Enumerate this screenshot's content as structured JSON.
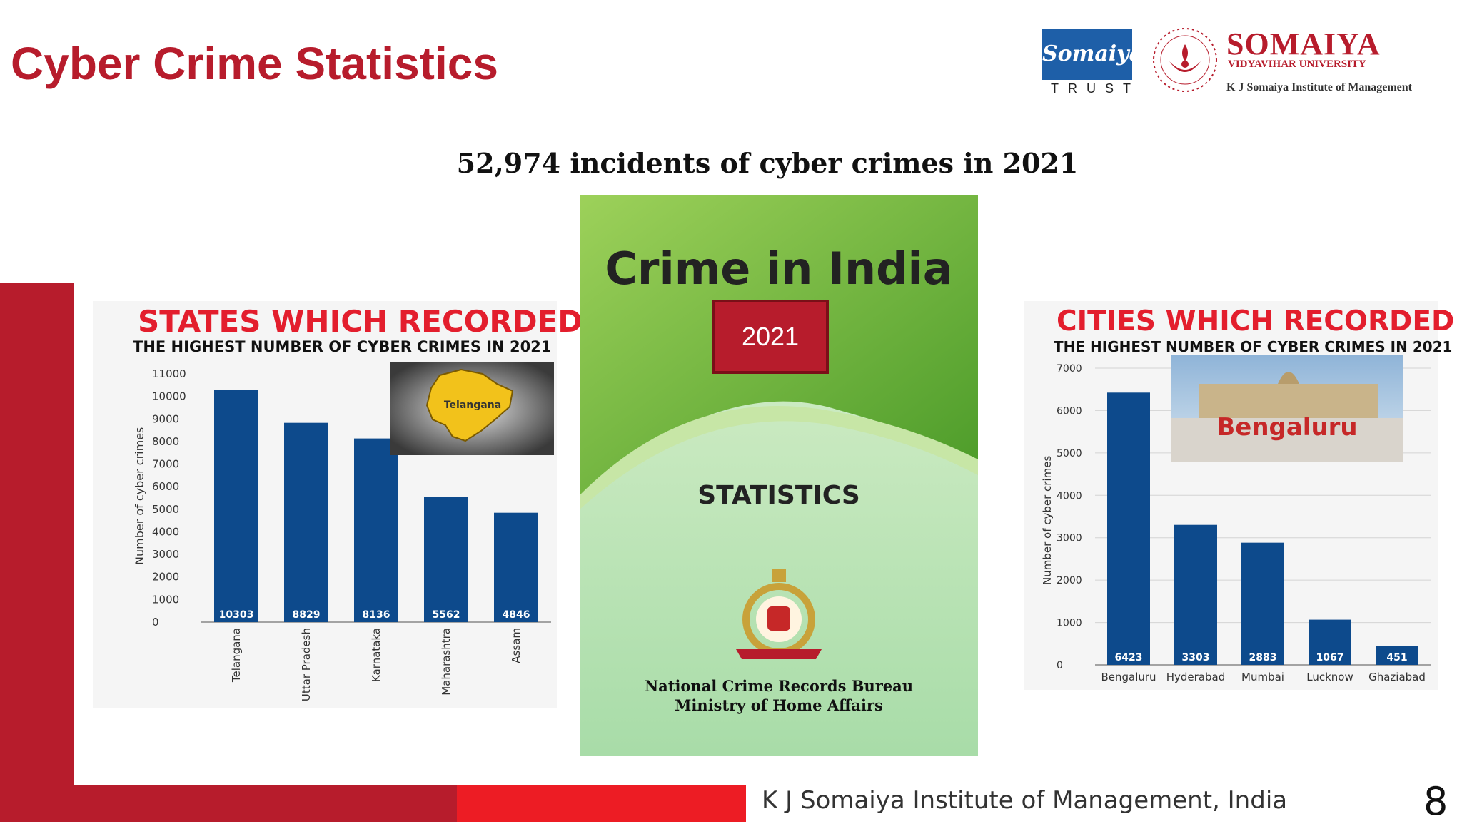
{
  "slide": {
    "title": "Cyber Crime Statistics",
    "subtitle": "52,974 incidents of cyber crimes in 2021",
    "footer": "K J Somaiya Institute of Management, India",
    "page_number": "8",
    "accent_color": "#b71c2c"
  },
  "logos": {
    "trust_script": "Somaiya",
    "trust_text": "TRUST",
    "university_name": "SOMAIYA",
    "university_sub": "VIDYAVIHAR UNIVERSITY",
    "institute": "K J Somaiya Institute of Management"
  },
  "book": {
    "title": "Crime in India",
    "year": "2021",
    "statistics": "STATISTICS",
    "bureau": "National Crime Records Bureau",
    "ministry": "Ministry of Home Affairs"
  },
  "states_photo_label": "Telangana",
  "cities_photo_label": "Bengaluru",
  "chart_data": [
    {
      "type": "bar",
      "title": "STATES WHICH RECORDED",
      "subtitle": "THE HIGHEST NUMBER OF CYBER CRIMES IN 2021",
      "ylabel": "Number of cyber crimes",
      "xlabel": "",
      "categories": [
        "Telangana",
        "Uttar Pradesh",
        "Karnataka",
        "Maharashtra",
        "Assam"
      ],
      "values": [
        10303,
        8829,
        8136,
        5562,
        4846
      ],
      "ylim": [
        0,
        11000
      ],
      "yticks": [
        0,
        1000,
        2000,
        3000,
        4000,
        5000,
        6000,
        7000,
        8000,
        9000,
        10000,
        11000
      ],
      "bar_color": "#0d4a8c",
      "grid": false
    },
    {
      "type": "bar",
      "title": "CITIES WHICH RECORDED",
      "subtitle": "THE HIGHEST NUMBER OF CYBER CRIMES IN 2021",
      "ylabel": "Number of cyber crimes",
      "xlabel": "",
      "categories": [
        "Bengaluru",
        "Hyderabad",
        "Mumbai",
        "Lucknow",
        "Ghaziabad"
      ],
      "values": [
        6423,
        3303,
        2883,
        1067,
        451
      ],
      "ylim": [
        0,
        7000
      ],
      "yticks": [
        0,
        1000,
        2000,
        3000,
        4000,
        5000,
        6000,
        7000
      ],
      "bar_color": "#0d4a8c",
      "grid": true
    }
  ]
}
